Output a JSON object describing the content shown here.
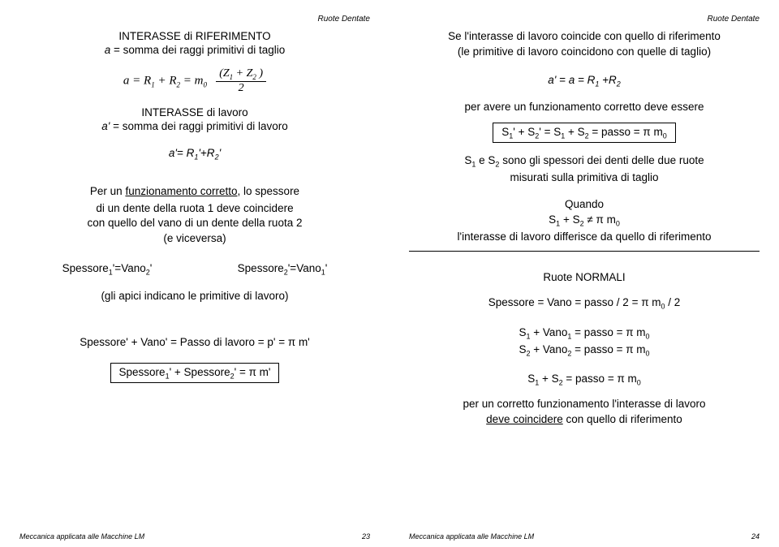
{
  "header": "Ruote Dentate",
  "footer_text": "Meccanica applicata alle Macchine LM",
  "left": {
    "page_num": "23",
    "t1": "INTERASSE di RIFERIMENTO",
    "t2_pre": "a",
    "t2_post": " = somma dei raggi primitivi di taglio",
    "formula_a": "a = R",
    "formula_b": " + R",
    "formula_c": " = m",
    "frac_num_a": "(Z",
    "frac_num_b": " + Z",
    "frac_num_c": " )",
    "frac_den": "2",
    "t3": "INTERASSE di lavoro",
    "t4_pre": "a'",
    "t4_post": " = somma dei raggi primitivi di lavoro",
    "t5_pre": "a'= R",
    "t5_mid": "'+R",
    "t5_post": "'",
    "p1a": "Per un ",
    "p1b": "funzionamento corretto",
    "p1c": ", lo spessore",
    "p2": "di un dente della ruota 1 deve coincidere",
    "p3": "con quello del vano di un dente della ruota 2",
    "p4": "(e viceversa)",
    "sp_a": "Spessore",
    "sp_b": "'=Vano",
    "sp_c": "'",
    "gli": "(gli apici indicano le primitive di lavoro)",
    "eq1": "Spessore' + Vano' = Passo di lavoro = p' = π m'",
    "eq2_a": "Spessore",
    "eq2_b": "' + Spessore",
    "eq2_c": "' =  π m'"
  },
  "right": {
    "page_num": "24",
    "r1": "Se l'interasse di lavoro coincide con quello di riferimento",
    "r2": "(le primitive di lavoro coincidono con quelle di taglio)",
    "r3_a": "a' = a = ",
    "r3_b": "R",
    "r3_c": " +R",
    "r4": "per avere un funzionamento corretto deve essere",
    "box1_a": "S",
    "box1_b": "' + S",
    "box1_c": "' = S",
    "box1_d": " + S",
    "box1_e": " = passo = π m",
    "r5_a": "S",
    "r5_b": " e S",
    "r5_c": " sono gli spessori dei denti delle due ruote",
    "r6": "misurati sulla primitiva di taglio",
    "r7": "Quando",
    "r8_a": "S",
    "r8_b": " + S",
    "r8_c": " ≠ π m",
    "r9": "l'interasse di lavoro differisce da quello di riferimento",
    "r10": "Ruote NORMALI",
    "r11_a": "Spessore = Vano = passo / 2 = π m",
    "r11_b": " / 2",
    "r12_a": "S",
    "r12_b": " + Vano",
    "r12_c": " = passo = π m",
    "r13_a": "S",
    "r13_b": " + Vano",
    "r13_c": " = passo = π m",
    "r14_a": "S",
    "r14_b": " + S",
    "r14_c": " = passo = π m",
    "r15": "per un corretto funzionamento l'interasse di lavoro",
    "r16_a": "deve coincidere",
    "r16_b": " con quello di riferimento"
  }
}
